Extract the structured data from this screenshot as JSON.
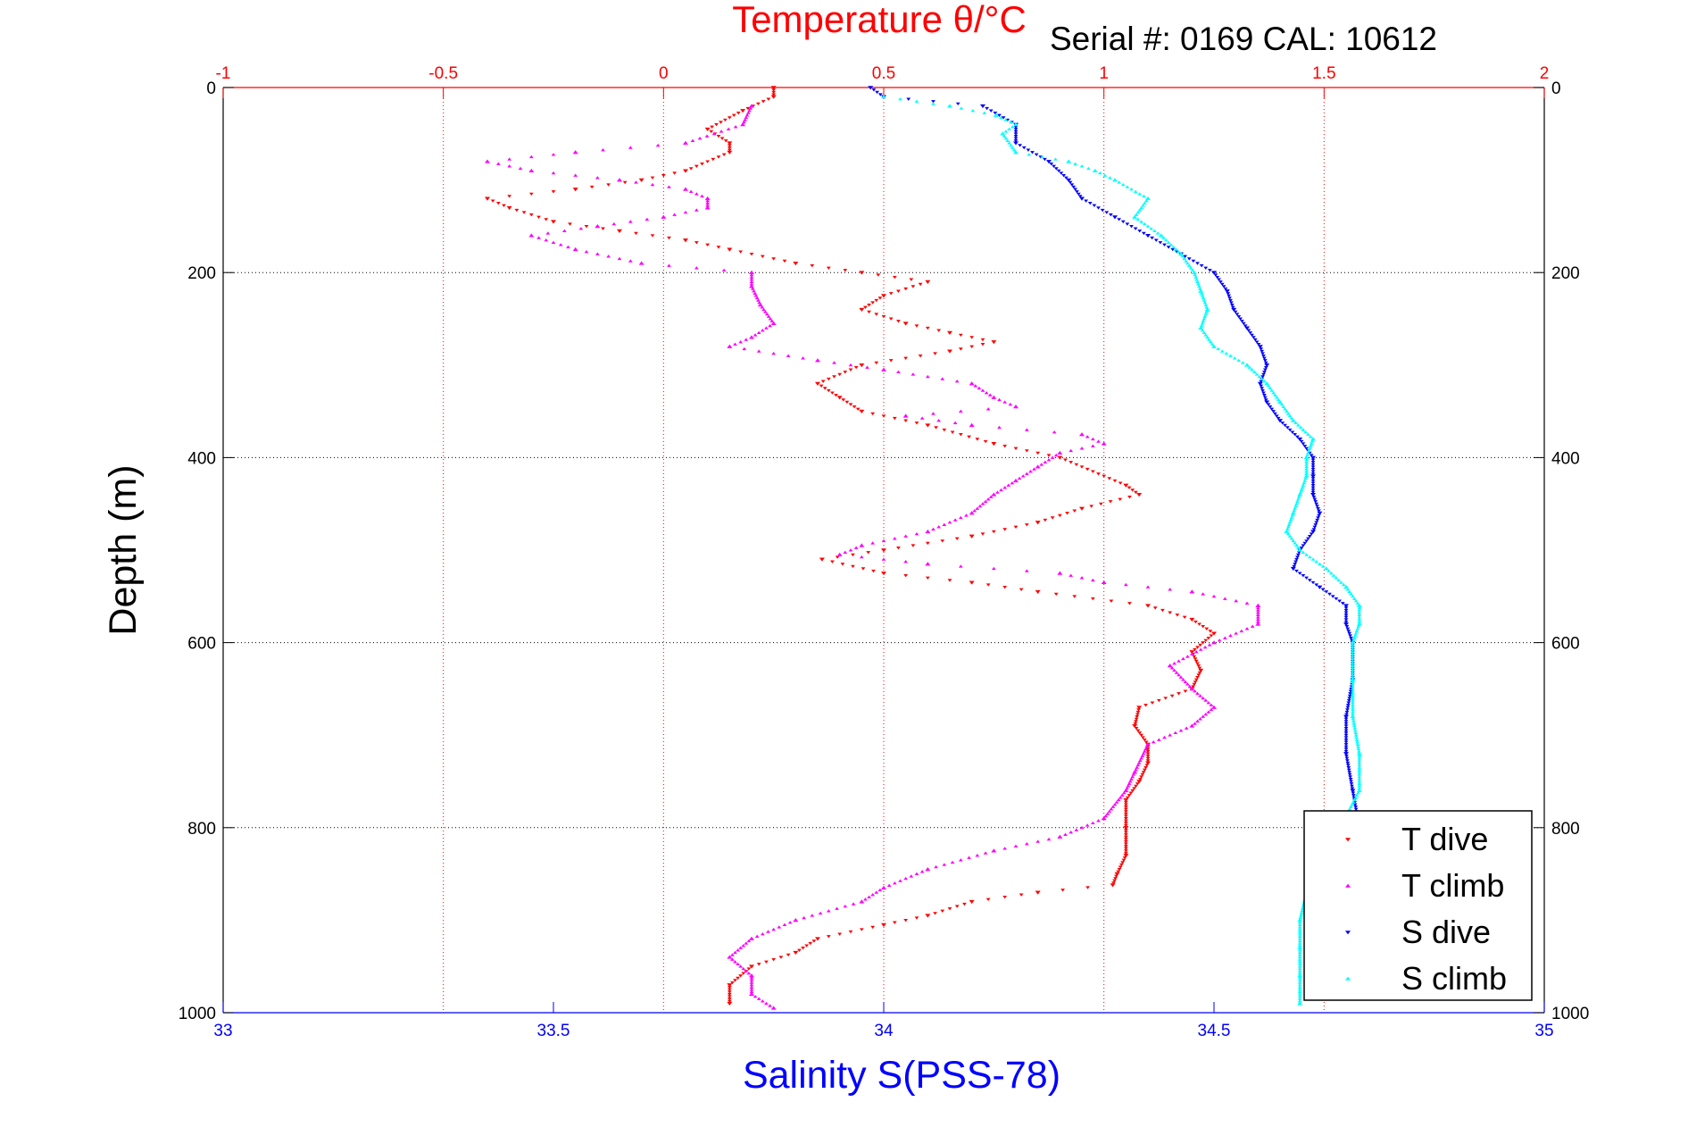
{
  "chart_data": {
    "type": "scatter",
    "title": "Temperature θ/°C",
    "subtitle": "Serial #: 0169 CAL: 10612",
    "xlabel": "Salinity S(PSS-78)",
    "ylabel": "Depth (m)",
    "x_top_range": [
      -1,
      2
    ],
    "x_top_ticks": [
      "-1",
      "-0.5",
      "0",
      "0.5",
      "1",
      "1.5",
      "2"
    ],
    "x_bottom_range": [
      33,
      35
    ],
    "x_bottom_ticks": [
      "33",
      "33.5",
      "34",
      "34.5",
      "35"
    ],
    "y_range": [
      0,
      1000
    ],
    "y_reversed": true,
    "y_ticks": [
      "0",
      "200",
      "400",
      "600",
      "800",
      "1000"
    ],
    "grid": true,
    "legend_position": "bottom-right",
    "colors": {
      "title": "#ff0000",
      "top_axis": "#ff0000",
      "bottom_axis": "#0000ff",
      "left_axis": "#000000"
    },
    "series": [
      {
        "name": "T dive",
        "axis": "top",
        "color": "#ff0000",
        "marker": "triangle-down",
        "points": [
          [
            0.25,
            0
          ],
          [
            0.25,
            10
          ],
          [
            0.18,
            25
          ],
          [
            0.1,
            45
          ],
          [
            0.15,
            60
          ],
          [
            0.15,
            70
          ],
          [
            0.05,
            90
          ],
          [
            -0.05,
            100
          ],
          [
            -0.2,
            110
          ],
          [
            -0.4,
            120
          ],
          [
            -0.35,
            130
          ],
          [
            -0.25,
            145
          ],
          [
            -0.1,
            155
          ],
          [
            0.05,
            165
          ],
          [
            0.15,
            175
          ],
          [
            0.3,
            190
          ],
          [
            0.45,
            200
          ],
          [
            0.6,
            210
          ],
          [
            0.5,
            225
          ],
          [
            0.45,
            240
          ],
          [
            0.55,
            255
          ],
          [
            0.65,
            265
          ],
          [
            0.75,
            275
          ],
          [
            0.65,
            285
          ],
          [
            0.45,
            300
          ],
          [
            0.35,
            320
          ],
          [
            0.4,
            335
          ],
          [
            0.45,
            350
          ],
          [
            0.6,
            365
          ],
          [
            0.75,
            385
          ],
          [
            0.9,
            400
          ],
          [
            1.05,
            430
          ],
          [
            1.08,
            440
          ],
          [
            0.95,
            455
          ],
          [
            0.85,
            470
          ],
          [
            0.7,
            485
          ],
          [
            0.5,
            500
          ],
          [
            0.36,
            510
          ],
          [
            0.5,
            525
          ],
          [
            0.7,
            535
          ],
          [
            0.85,
            545
          ],
          [
            1.1,
            560
          ],
          [
            1.2,
            575
          ],
          [
            1.25,
            590
          ],
          [
            1.2,
            610
          ],
          [
            1.22,
            630
          ],
          [
            1.2,
            650
          ],
          [
            1.08,
            670
          ],
          [
            1.07,
            690
          ],
          [
            1.1,
            710
          ],
          [
            1.1,
            730
          ],
          [
            1.08,
            750
          ],
          [
            1.05,
            770
          ],
          [
            1.05,
            800
          ],
          [
            1.05,
            830
          ],
          [
            1.03,
            850
          ],
          [
            1.02,
            862
          ],
          [
            0.85,
            870
          ],
          [
            0.7,
            880
          ],
          [
            0.6,
            895
          ],
          [
            0.5,
            905
          ],
          [
            0.35,
            920
          ],
          [
            0.3,
            935
          ],
          [
            0.2,
            950
          ],
          [
            0.15,
            970
          ],
          [
            0.15,
            990
          ]
        ]
      },
      {
        "name": "T climb",
        "axis": "top",
        "color": "#ff00ff",
        "marker": "triangle-up",
        "points": [
          [
            0.2,
            20
          ],
          [
            0.18,
            40
          ],
          [
            0.05,
            60
          ],
          [
            -0.2,
            70
          ],
          [
            -0.4,
            80
          ],
          [
            -0.3,
            90
          ],
          [
            -0.1,
            100
          ],
          [
            0.05,
            110
          ],
          [
            0.1,
            120
          ],
          [
            0.1,
            130
          ],
          [
            0.0,
            140
          ],
          [
            -0.15,
            150
          ],
          [
            -0.3,
            160
          ],
          [
            -0.2,
            175
          ],
          [
            -0.05,
            190
          ],
          [
            0.2,
            200
          ],
          [
            0.2,
            215
          ],
          [
            0.22,
            235
          ],
          [
            0.25,
            255
          ],
          [
            0.2,
            270
          ],
          [
            0.15,
            280
          ],
          [
            0.35,
            295
          ],
          [
            0.5,
            305
          ],
          [
            0.7,
            320
          ],
          [
            0.75,
            335
          ],
          [
            0.8,
            345
          ],
          [
            0.55,
            355
          ],
          [
            0.7,
            365
          ],
          [
            0.95,
            375
          ],
          [
            1.0,
            385
          ],
          [
            0.9,
            395
          ],
          [
            0.85,
            410
          ],
          [
            0.8,
            425
          ],
          [
            0.75,
            440
          ],
          [
            0.7,
            460
          ],
          [
            0.6,
            480
          ],
          [
            0.45,
            495
          ],
          [
            0.4,
            505
          ],
          [
            0.6,
            515
          ],
          [
            0.9,
            525
          ],
          [
            1.0,
            535
          ],
          [
            1.2,
            545
          ],
          [
            1.35,
            560
          ],
          [
            1.35,
            580
          ],
          [
            1.25,
            600
          ],
          [
            1.15,
            625
          ],
          [
            1.2,
            650
          ],
          [
            1.25,
            670
          ],
          [
            1.2,
            690
          ],
          [
            1.1,
            710
          ],
          [
            1.07,
            740
          ],
          [
            1.05,
            760
          ],
          [
            1.0,
            790
          ],
          [
            0.9,
            810
          ],
          [
            0.75,
            825
          ],
          [
            0.6,
            845
          ],
          [
            0.5,
            865
          ],
          [
            0.45,
            880
          ],
          [
            0.3,
            900
          ],
          [
            0.2,
            920
          ],
          [
            0.15,
            940
          ],
          [
            0.2,
            960
          ],
          [
            0.2,
            980
          ],
          [
            0.25,
            995
          ]
        ]
      },
      {
        "name": "S dive",
        "axis": "bottom",
        "color": "#0000ff",
        "marker": "triangle-down",
        "points": [
          [
            33.98,
            0
          ],
          [
            34.0,
            10
          ],
          [
            34.15,
            20
          ],
          [
            34.2,
            40
          ],
          [
            34.2,
            60
          ],
          [
            34.25,
            80
          ],
          [
            34.28,
            100
          ],
          [
            34.3,
            120
          ],
          [
            34.35,
            140
          ],
          [
            34.4,
            160
          ],
          [
            34.45,
            180
          ],
          [
            34.5,
            200
          ],
          [
            34.52,
            220
          ],
          [
            34.53,
            240
          ],
          [
            34.55,
            260
          ],
          [
            34.57,
            280
          ],
          [
            34.58,
            300
          ],
          [
            34.57,
            320
          ],
          [
            34.58,
            340
          ],
          [
            34.6,
            360
          ],
          [
            34.63,
            380
          ],
          [
            34.65,
            400
          ],
          [
            34.65,
            420
          ],
          [
            34.65,
            440
          ],
          [
            34.66,
            460
          ],
          [
            34.65,
            480
          ],
          [
            34.63,
            500
          ],
          [
            34.62,
            520
          ],
          [
            34.66,
            540
          ],
          [
            34.7,
            560
          ],
          [
            34.7,
            580
          ],
          [
            34.71,
            600
          ],
          [
            34.71,
            640
          ],
          [
            34.7,
            680
          ],
          [
            34.7,
            720
          ],
          [
            34.71,
            760
          ],
          [
            34.72,
            800
          ]
        ]
      },
      {
        "name": "S climb",
        "axis": "bottom",
        "color": "#00ffff",
        "marker": "triangle-up",
        "points": [
          [
            34.0,
            10
          ],
          [
            34.1,
            20
          ],
          [
            34.17,
            30
          ],
          [
            34.2,
            40
          ],
          [
            34.18,
            50
          ],
          [
            34.2,
            70
          ],
          [
            34.28,
            80
          ],
          [
            34.32,
            90
          ],
          [
            34.35,
            100
          ],
          [
            34.4,
            120
          ],
          [
            34.38,
            140
          ],
          [
            34.42,
            160
          ],
          [
            34.45,
            180
          ],
          [
            34.47,
            200
          ],
          [
            34.48,
            220
          ],
          [
            34.49,
            240
          ],
          [
            34.48,
            260
          ],
          [
            34.5,
            280
          ],
          [
            34.55,
            300
          ],
          [
            34.58,
            320
          ],
          [
            34.6,
            340
          ],
          [
            34.62,
            360
          ],
          [
            34.65,
            380
          ],
          [
            34.64,
            400
          ],
          [
            34.64,
            420
          ],
          [
            34.63,
            440
          ],
          [
            34.62,
            460
          ],
          [
            34.61,
            480
          ],
          [
            34.63,
            500
          ],
          [
            34.67,
            520
          ],
          [
            34.7,
            540
          ],
          [
            34.72,
            560
          ],
          [
            34.72,
            580
          ],
          [
            34.71,
            600
          ],
          [
            34.71,
            640
          ],
          [
            34.71,
            680
          ],
          [
            34.72,
            720
          ],
          [
            34.72,
            760
          ],
          [
            34.64,
            870
          ],
          [
            34.63,
            900
          ],
          [
            34.63,
            930
          ],
          [
            34.63,
            960
          ],
          [
            34.63,
            990
          ]
        ]
      }
    ]
  }
}
